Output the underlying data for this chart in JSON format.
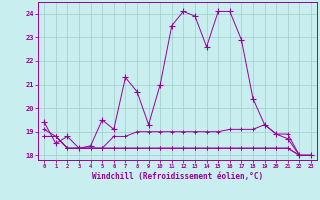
{
  "xlabel": "Windchill (Refroidissement éolien,°C)",
  "background_color": "#c8eef0",
  "grid_color": "#a0cccc",
  "line_color": "#990099",
  "x": [
    0,
    1,
    2,
    3,
    4,
    5,
    6,
    7,
    8,
    9,
    10,
    11,
    12,
    13,
    14,
    15,
    16,
    17,
    18,
    19,
    20,
    21,
    22,
    23
  ],
  "series1": [
    19.4,
    18.5,
    18.8,
    18.3,
    18.4,
    19.5,
    19.1,
    21.3,
    20.7,
    19.3,
    21.0,
    23.5,
    24.1,
    23.9,
    22.6,
    24.1,
    24.1,
    22.9,
    20.4,
    19.3,
    18.9,
    18.7,
    18.0,
    18.0
  ],
  "series2": [
    18.8,
    18.8,
    18.3,
    18.3,
    18.3,
    18.3,
    18.8,
    18.8,
    19.0,
    19.0,
    19.0,
    19.0,
    19.0,
    19.0,
    19.0,
    19.0,
    19.1,
    19.1,
    19.1,
    19.3,
    18.9,
    18.9,
    18.0,
    18.0
  ],
  "series3": [
    18.8,
    18.8,
    18.3,
    18.3,
    18.3,
    18.3,
    18.3,
    18.3,
    18.3,
    18.3,
    18.3,
    18.3,
    18.3,
    18.3,
    18.3,
    18.3,
    18.3,
    18.3,
    18.3,
    18.3,
    18.3,
    18.3,
    18.0,
    18.0
  ],
  "series4": [
    19.1,
    18.8,
    18.3,
    18.3,
    18.3,
    18.3,
    18.3,
    18.3,
    18.3,
    18.3,
    18.3,
    18.3,
    18.3,
    18.3,
    18.3,
    18.3,
    18.3,
    18.3,
    18.3,
    18.3,
    18.3,
    18.3,
    18.0,
    18.0
  ],
  "ylim": [
    17.8,
    24.5
  ],
  "yticks": [
    18,
    19,
    20,
    21,
    22,
    23,
    24
  ],
  "xlim": [
    -0.5,
    23.5
  ]
}
